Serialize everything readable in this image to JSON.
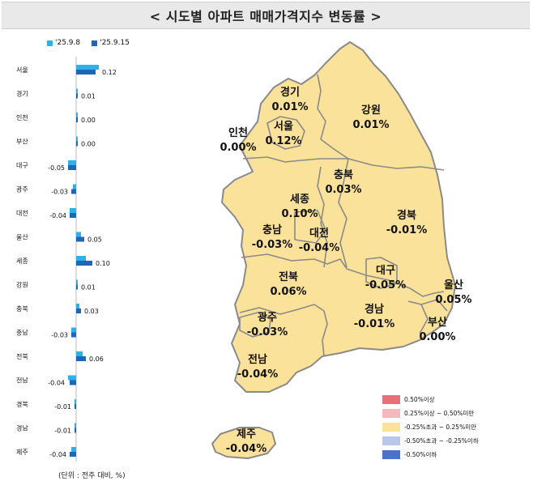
{
  "title": "< 시도별 아파트 매매가격지수 변동률 >",
  "unit_note": "(단위 : 전주 대비, %)",
  "colors": {
    "prev": "#2eb0e8",
    "curr": "#1f66b8",
    "map_fill": "#fbe29a",
    "map_stroke": "#8a8a8a"
  },
  "chart_data": {
    "type": "bar",
    "orientation": "horizontal",
    "categories": [
      "서울",
      "경기",
      "인천",
      "부산",
      "대구",
      "광주",
      "대전",
      "울산",
      "세종",
      "강원",
      "충북",
      "충남",
      "전북",
      "전남",
      "경북",
      "경남",
      "제주"
    ],
    "series": [
      {
        "name": "'25.9.8",
        "values": [
          0.14,
          0.01,
          0.0,
          0.0,
          -0.05,
          -0.02,
          -0.04,
          0.03,
          0.06,
          0.01,
          0.02,
          -0.03,
          0.04,
          -0.05,
          -0.01,
          -0.01,
          -0.03
        ]
      },
      {
        "name": "'25.9.15",
        "values": [
          0.12,
          0.01,
          0.0,
          0.0,
          -0.05,
          -0.03,
          -0.04,
          0.05,
          0.1,
          0.01,
          0.03,
          -0.03,
          0.06,
          -0.04,
          -0.01,
          -0.01,
          -0.04
        ]
      }
    ],
    "value_labels": [
      "0.12",
      "0.01",
      "0.00",
      "0.00",
      "-0.05",
      "-0.03",
      "-0.04",
      "0.05",
      "0.10",
      "0.01",
      "0.03",
      "-0.03",
      "0.06",
      "-0.04",
      "-0.01",
      "-0.01",
      "-0.04"
    ]
  },
  "map": {
    "regions": [
      {
        "id": "gyeonggi",
        "name": "경기",
        "value": "0.01%"
      },
      {
        "id": "gangwon",
        "name": "강원",
        "value": "0.01%"
      },
      {
        "id": "incheon",
        "name": "인천",
        "value": "0.00%"
      },
      {
        "id": "seoul",
        "name": "서울",
        "value": "0.12%"
      },
      {
        "id": "chungbuk",
        "name": "충북",
        "value": "0.03%"
      },
      {
        "id": "sejong",
        "name": "세종",
        "value": "0.10%"
      },
      {
        "id": "gyeongbuk",
        "name": "경북",
        "value": "-0.01%"
      },
      {
        "id": "chungnam",
        "name": "충남",
        "value": "-0.03%"
      },
      {
        "id": "daejeon",
        "name": "대전",
        "value": "-0.04%"
      },
      {
        "id": "jeonbuk",
        "name": "전북",
        "value": "0.06%"
      },
      {
        "id": "daegu",
        "name": "대구",
        "value": "-0.05%"
      },
      {
        "id": "ulsan",
        "name": "울산",
        "value": "0.05%"
      },
      {
        "id": "gwangju",
        "name": "광주",
        "value": "-0.03%"
      },
      {
        "id": "gyeongnam",
        "name": "경남",
        "value": "-0.01%"
      },
      {
        "id": "busan",
        "name": "부산",
        "value": "0.00%"
      },
      {
        "id": "jeonnam",
        "name": "전남",
        "value": "-0.04%"
      },
      {
        "id": "jeju",
        "name": "제주",
        "value": "-0.04%"
      }
    ],
    "legend": [
      {
        "label": "0.50%이상",
        "color": "#e8707a"
      },
      {
        "label": "0.25%이상 ~ 0.50%미만",
        "color": "#f4b9be"
      },
      {
        "label": "-0.25%초과 ~ 0.25%미만",
        "color": "#fbe29a"
      },
      {
        "label": "-0.50%초과 ~ -0.25%이하",
        "color": "#b9c8ea"
      },
      {
        "label": "-0.50%이하",
        "color": "#4a73c8"
      }
    ]
  }
}
